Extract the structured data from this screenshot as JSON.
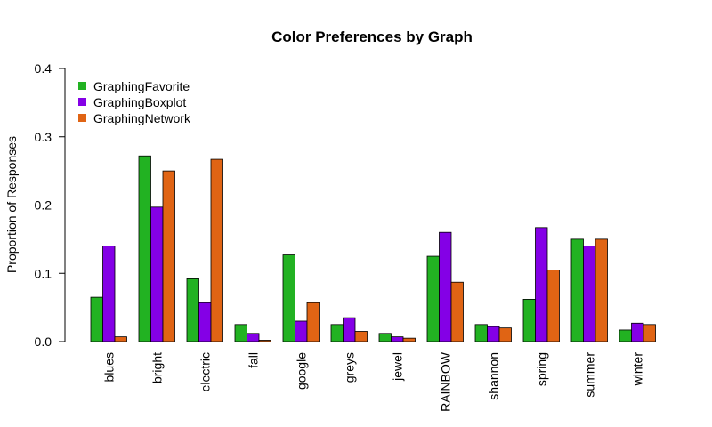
{
  "chart_data": {
    "type": "bar",
    "title": "Color Preferences by Graph",
    "xlabel": "",
    "ylabel": "Proportion of Responses",
    "ylim": [
      0,
      0.4
    ],
    "yticks": [
      "0.0",
      "0.1",
      "0.2",
      "0.3",
      "0.4"
    ],
    "categories": [
      "blues",
      "bright",
      "electric",
      "fall",
      "google",
      "greys",
      "jewel",
      "RAINBOW",
      "shannon",
      "spring",
      "summer",
      "winter"
    ],
    "series": [
      {
        "name": "GraphingFavorite",
        "color": "#22b222",
        "values": [
          0.065,
          0.272,
          0.092,
          0.025,
          0.127,
          0.025,
          0.012,
          0.125,
          0.025,
          0.062,
          0.15,
          0.017
        ]
      },
      {
        "name": "GraphingBoxplot",
        "color": "#8400e6",
        "values": [
          0.14,
          0.197,
          0.057,
          0.012,
          0.03,
          0.035,
          0.007,
          0.16,
          0.022,
          0.167,
          0.14,
          0.027
        ]
      },
      {
        "name": "GraphingNetwork",
        "color": "#e06414",
        "values": [
          0.007,
          0.25,
          0.267,
          0.002,
          0.057,
          0.015,
          0.005,
          0.087,
          0.02,
          0.105,
          0.15,
          0.025
        ]
      }
    ],
    "legend_position": "top-left",
    "grid": false
  }
}
